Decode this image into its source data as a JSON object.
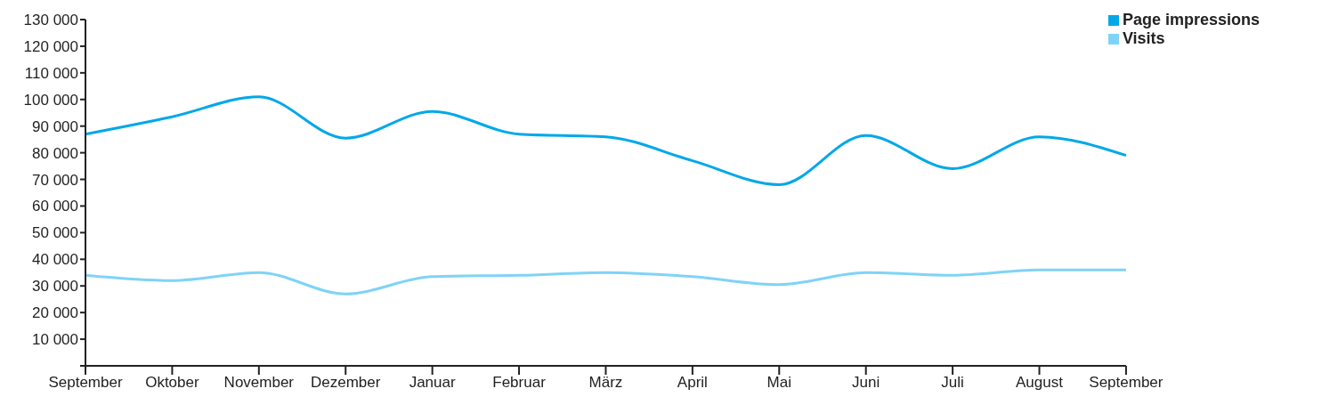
{
  "chart_data": {
    "type": "line",
    "categories": [
      "September",
      "Oktober",
      "November",
      "Dezember",
      "Januar",
      "Februar",
      "März",
      "April",
      "Mai",
      "Juni",
      "Juli",
      "August",
      "September"
    ],
    "series": [
      {
        "name": "Page impressions",
        "color": "#00a8e8",
        "values": [
          87000,
          93500,
          101000,
          85500,
          95500,
          87000,
          86000,
          77000,
          68000,
          86500,
          74000,
          86000,
          79000
        ]
      },
      {
        "name": "Visits",
        "color": "#7fd3f7",
        "values": [
          34000,
          32000,
          35000,
          27000,
          33500,
          34000,
          35000,
          33500,
          30500,
          35000,
          34000,
          36000,
          36000
        ]
      }
    ],
    "ylim": [
      0,
      130000
    ],
    "yticks": [
      {
        "value": 0,
        "label": null
      },
      {
        "value": 10000,
        "label": "10 000"
      },
      {
        "value": 20000,
        "label": "20 000"
      },
      {
        "value": 30000,
        "label": "30 000"
      },
      {
        "value": 40000,
        "label": "40 000"
      },
      {
        "value": 50000,
        "label": "50 000"
      },
      {
        "value": 60000,
        "label": "60 000"
      },
      {
        "value": 70000,
        "label": "70 000"
      },
      {
        "value": 80000,
        "label": "80 000"
      },
      {
        "value": 90000,
        "label": "90 000"
      },
      {
        "value": 100000,
        "label": "100 000"
      },
      {
        "value": 110000,
        "label": "110 000"
      },
      {
        "value": 120000,
        "label": "120 000"
      },
      {
        "value": 130000,
        "label": "130 000"
      }
    ],
    "grid": false,
    "legend": "top right",
    "marker": "none",
    "line_style": "solid"
  }
}
